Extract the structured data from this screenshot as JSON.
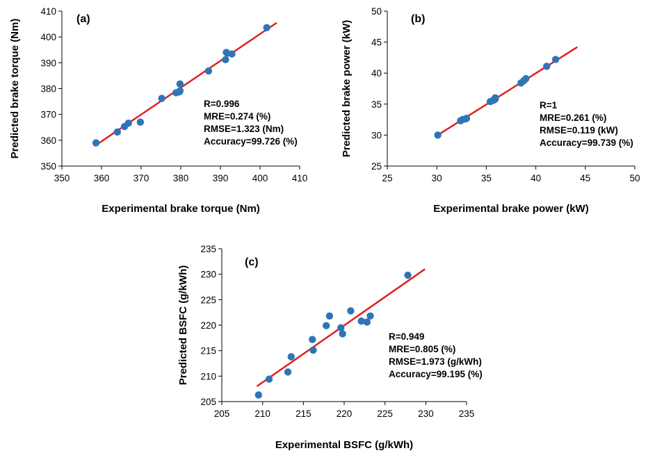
{
  "chart_data": [
    {
      "type": "scatter",
      "panel_label": "(a)",
      "xlabel": "Experimental brake torque (Nm)",
      "ylabel": "Predicted brake torque (Nm)",
      "xlim": [
        350,
        410
      ],
      "ylim": [
        350,
        410
      ],
      "xticks": [
        350,
        360,
        370,
        380,
        390,
        400,
        410
      ],
      "yticks": [
        350,
        360,
        370,
        380,
        390,
        400,
        410
      ],
      "xtick_labels": [
        "350",
        "360",
        "370",
        "380",
        "390",
        "400",
        "410"
      ],
      "ytick_labels": [
        "350",
        "360",
        "370",
        "380",
        "390",
        "400",
        "410"
      ],
      "grid": false,
      "point_color": "#2e75b6",
      "line_color": "#e02020",
      "stats": [
        "R=0.996",
        "MRE=0.274 (%)",
        "RMSE=1.323 (Nm)",
        "Accuracy=99.726 (%)"
      ],
      "points": [
        {
          "x": 358.6,
          "y": 359.0
        },
        {
          "x": 364.0,
          "y": 363.2
        },
        {
          "x": 365.8,
          "y": 365.3
        },
        {
          "x": 366.8,
          "y": 366.6
        },
        {
          "x": 369.8,
          "y": 367.0
        },
        {
          "x": 375.2,
          "y": 376.2
        },
        {
          "x": 378.8,
          "y": 378.4
        },
        {
          "x": 379.6,
          "y": 378.7
        },
        {
          "x": 379.8,
          "y": 379.1
        },
        {
          "x": 379.8,
          "y": 381.8
        },
        {
          "x": 387.0,
          "y": 386.8
        },
        {
          "x": 391.3,
          "y": 391.2
        },
        {
          "x": 391.5,
          "y": 394.0
        },
        {
          "x": 392.9,
          "y": 393.4
        },
        {
          "x": 401.7,
          "y": 403.6
        }
      ],
      "fit_line": {
        "x": [
          358.2,
          404.2
        ],
        "y": [
          357.7,
          405.5
        ]
      }
    },
    {
      "type": "scatter",
      "panel_label": "(b)",
      "xlabel": "Experimental brake power (kW)",
      "ylabel": "Predicted brake power (kW)",
      "xlim": [
        25,
        50
      ],
      "ylim": [
        25,
        50
      ],
      "xticks": [
        25,
        30,
        35,
        40,
        45,
        50
      ],
      "yticks": [
        25,
        30,
        35,
        40,
        45,
        50
      ],
      "xtick_labels": [
        "25",
        "30",
        "35",
        "40",
        "45",
        "50"
      ],
      "ytick_labels": [
        "25",
        "30",
        "35",
        "40",
        "45",
        "50"
      ],
      "grid": false,
      "point_color": "#2e75b6",
      "line_color": "#e02020",
      "stats": [
        "R=1",
        "MRE=0.261 (%)",
        "RMSE=0.119 (kW)",
        "Accuracy=99.739 (%)"
      ],
      "points": [
        {
          "x": 30.1,
          "y": 30.0
        },
        {
          "x": 32.4,
          "y": 32.3
        },
        {
          "x": 32.6,
          "y": 32.5
        },
        {
          "x": 32.9,
          "y": 32.6
        },
        {
          "x": 33.0,
          "y": 32.7
        },
        {
          "x": 35.4,
          "y": 35.4
        },
        {
          "x": 35.7,
          "y": 35.6
        },
        {
          "x": 35.9,
          "y": 35.8
        },
        {
          "x": 35.9,
          "y": 36.0
        },
        {
          "x": 38.5,
          "y": 38.4
        },
        {
          "x": 38.8,
          "y": 38.8
        },
        {
          "x": 39.0,
          "y": 39.1
        },
        {
          "x": 41.1,
          "y": 41.1
        },
        {
          "x": 42.0,
          "y": 42.2
        }
      ],
      "fit_line": {
        "x": [
          29.9,
          44.2
        ],
        "y": [
          29.8,
          44.2
        ]
      }
    },
    {
      "type": "scatter",
      "panel_label": "(c)",
      "xlabel": "Experimental BSFC (g/kWh)",
      "ylabel": "Predicted BSFC (g/kWh)",
      "xlim": [
        205,
        235
      ],
      "ylim": [
        205,
        235
      ],
      "xticks": [
        205,
        210,
        215,
        220,
        225,
        230,
        235
      ],
      "yticks": [
        205,
        210,
        215,
        220,
        225,
        230,
        235
      ],
      "xtick_labels": [
        "205",
        "210",
        "215",
        "220",
        "225",
        "230",
        "235"
      ],
      "ytick_labels": [
        "205",
        "210",
        "215",
        "220",
        "225",
        "230",
        "235"
      ],
      "grid": false,
      "point_color": "#2e75b6",
      "line_color": "#e02020",
      "stats": [
        "R=0.949",
        "MRE=0.805 (%)",
        "RMSE=1.973 (g/kWh)",
        "Accuracy=99.195 (%)"
      ],
      "points": [
        {
          "x": 209.5,
          "y": 206.3
        },
        {
          "x": 210.8,
          "y": 209.4
        },
        {
          "x": 213.1,
          "y": 210.8
        },
        {
          "x": 213.5,
          "y": 213.8
        },
        {
          "x": 216.1,
          "y": 217.2
        },
        {
          "x": 216.2,
          "y": 215.1
        },
        {
          "x": 217.8,
          "y": 219.9
        },
        {
          "x": 218.2,
          "y": 221.8
        },
        {
          "x": 219.6,
          "y": 219.5
        },
        {
          "x": 219.8,
          "y": 218.3
        },
        {
          "x": 220.8,
          "y": 222.8
        },
        {
          "x": 222.1,
          "y": 220.8
        },
        {
          "x": 222.8,
          "y": 220.6
        },
        {
          "x": 223.2,
          "y": 221.8
        },
        {
          "x": 227.8,
          "y": 229.8
        }
      ],
      "fit_line": {
        "x": [
          209.3,
          229.9
        ],
        "y": [
          208.0,
          231.0
        ]
      }
    }
  ]
}
